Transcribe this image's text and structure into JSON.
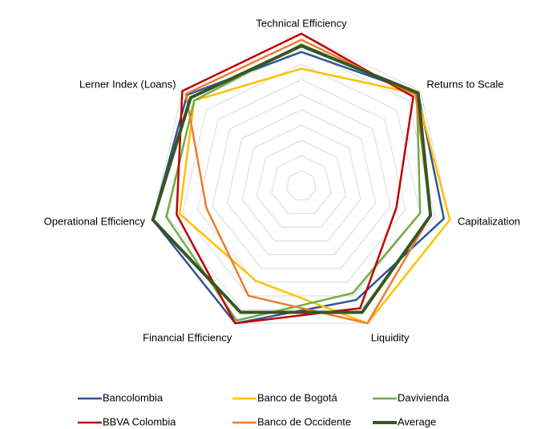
{
  "chart_data": {
    "type": "radar",
    "categories": [
      "Technical Efficiency",
      "Returns to Scale",
      "Capitalization",
      "Liquidity",
      "Financial Efficiency",
      "Operational Efficiency",
      "Lerner Index (Loans)"
    ],
    "ylim": [
      0,
      1
    ],
    "yticks": [
      0.1,
      0.2,
      0.3,
      0.4,
      0.5,
      0.6,
      0.7,
      0.8,
      0.9,
      1
    ],
    "tick_labels": false,
    "grid": true,
    "legend": "bottom",
    "series": [
      {
        "name": "Bancolombia",
        "color": "#2f5597",
        "values": [
          0.88,
          0.98,
          0.96,
          0.83,
          1.0,
          1.0,
          0.96
        ]
      },
      {
        "name": "Banco de Bogotá",
        "color": "#ffc000",
        "values": [
          0.77,
          0.97,
          1.0,
          1.0,
          0.69,
          0.82,
          0.9
        ]
      },
      {
        "name": "Davivienda",
        "color": "#70ad47",
        "values": [
          0.93,
          0.97,
          0.8,
          0.78,
          0.98,
          0.91,
          0.9
        ]
      },
      {
        "name": "BBVA Colombia",
        "color": "#c00000",
        "values": [
          1.0,
          0.94,
          0.64,
          0.89,
          1.0,
          0.84,
          1.0
        ]
      },
      {
        "name": "Banco de Occidente",
        "color": "#ed7d31",
        "values": [
          0.96,
          0.96,
          0.87,
          1.0,
          0.8,
          0.64,
          0.97
        ]
      },
      {
        "name": "Average",
        "color": "#375623",
        "values": [
          0.92,
          0.98,
          0.87,
          0.92,
          0.92,
          1.0,
          0.93
        ]
      }
    ]
  }
}
